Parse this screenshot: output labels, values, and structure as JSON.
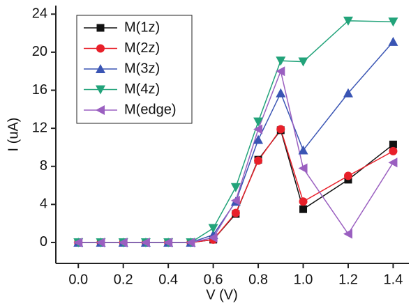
{
  "chart_data": {
    "type": "line",
    "x_label": "V (V)",
    "y_label": "I (uA)",
    "x": [
      0.0,
      0.1,
      0.2,
      0.3,
      0.4,
      0.5,
      0.6,
      0.7,
      0.8,
      0.9,
      1.0,
      1.2,
      1.4
    ],
    "series": [
      {
        "name": "M(1z)",
        "color": "#111111",
        "marker": "square",
        "values": [
          0,
          0,
          0,
          0,
          0,
          0,
          0.3,
          3.0,
          8.7,
          11.8,
          3.5,
          6.6,
          10.3
        ]
      },
      {
        "name": "M(2z)",
        "color": "#e8202a",
        "marker": "circle",
        "values": [
          0,
          0,
          0,
          0,
          0,
          0,
          0.3,
          3.1,
          8.6,
          11.9,
          4.3,
          7.0,
          9.6
        ]
      },
      {
        "name": "M(3z)",
        "color": "#3a55b4",
        "marker": "triangle-up",
        "values": [
          0,
          0,
          0,
          0,
          0,
          0,
          0.8,
          4.3,
          10.8,
          15.7,
          9.7,
          15.7,
          21.1
        ]
      },
      {
        "name": "M(4z)",
        "color": "#22a37a",
        "marker": "triangle-down",
        "values": [
          0,
          0,
          0,
          0,
          0,
          0,
          1.5,
          5.8,
          12.7,
          19.1,
          19.0,
          23.3,
          23.2
        ]
      },
      {
        "name": "M(edge)",
        "color": "#9a5fc0",
        "marker": "triangle-left",
        "values": [
          0,
          0,
          0,
          0,
          0,
          0,
          0.5,
          4.4,
          11.9,
          18.0,
          7.8,
          0.9,
          8.4
        ]
      }
    ],
    "xlim": [
      -0.1,
      1.47
    ],
    "ylim": [
      -2.2,
      24.9
    ],
    "xticks": [
      {
        "value": 0,
        "label": "0.0"
      },
      0.2,
      0.4,
      0.6,
      0.8,
      {
        "value": 1,
        "label": "1.0"
      },
      1.2,
      1.4
    ],
    "yticks": [
      0,
      4,
      8,
      12,
      16,
      20,
      24
    ],
    "legend": "upper-left"
  }
}
